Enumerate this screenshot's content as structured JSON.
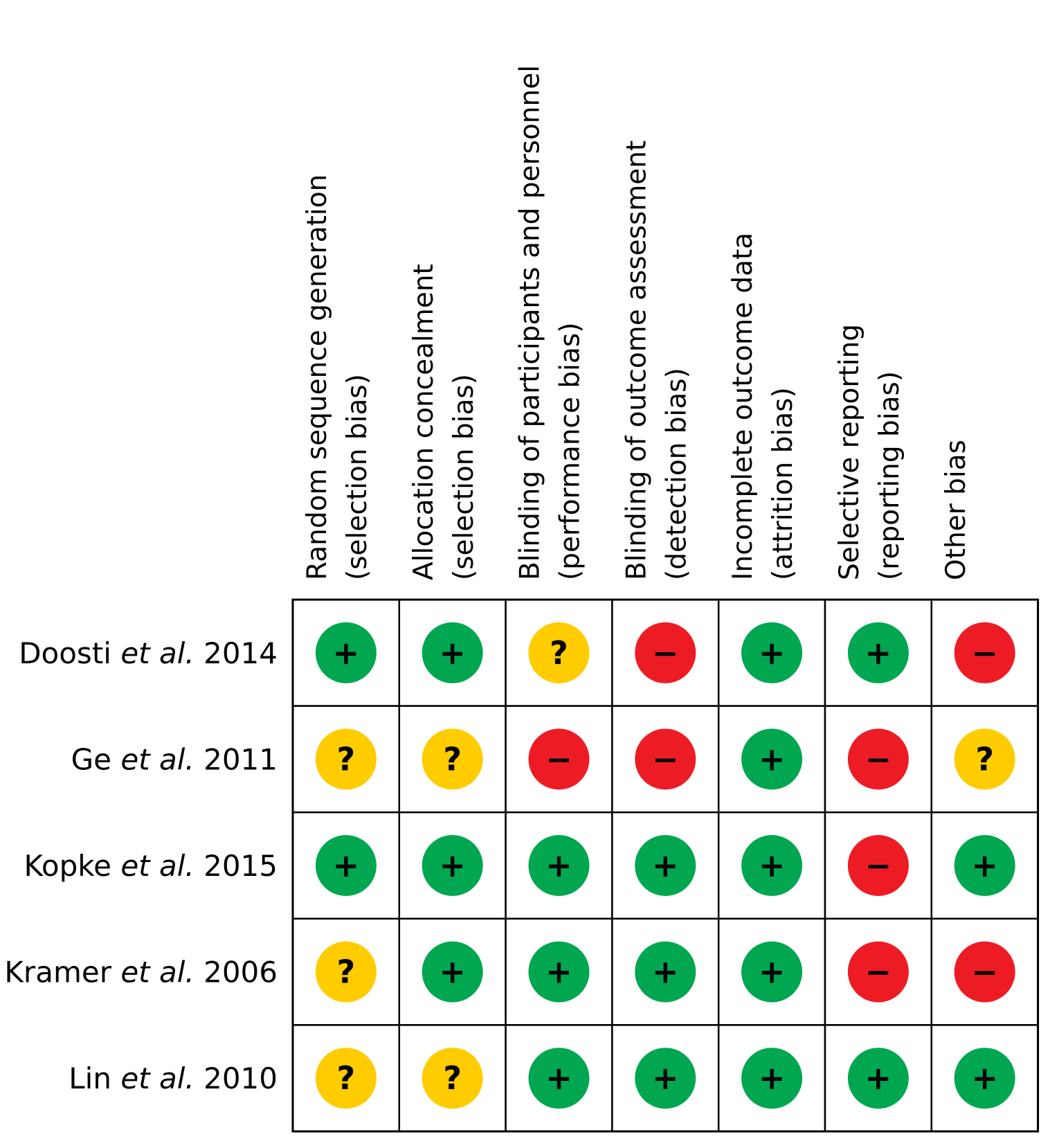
{
  "chart_data": {
    "type": "table",
    "domains": [
      {
        "line1": "Random sequence generation",
        "line2": "(selection bias)"
      },
      {
        "line1": "Allocation concealment",
        "line2": "(selection bias)"
      },
      {
        "line1": "Blinding of participants and personnel",
        "line2": "(performance bias)"
      },
      {
        "line1": "Blinding of outcome assessment",
        "line2": "(detection bias)"
      },
      {
        "line1": "Incomplete outcome data",
        "line2": "(attrition bias)"
      },
      {
        "line1": "Selective reporting",
        "line2": "(reporting bias)"
      },
      {
        "line1": "Other bias",
        "line2": ""
      }
    ],
    "studies": [
      {
        "author": "Doosti",
        "etal": "et al.",
        "year": "2014",
        "judgements": [
          "low",
          "low",
          "unclear",
          "high",
          "low",
          "low",
          "high"
        ]
      },
      {
        "author": "Ge",
        "etal": "et al.",
        "year": "2011",
        "judgements": [
          "unclear",
          "unclear",
          "high",
          "high",
          "low",
          "high",
          "unclear"
        ]
      },
      {
        "author": "Kopke",
        "etal": "et al.",
        "year": "2015",
        "judgements": [
          "low",
          "low",
          "low",
          "low",
          "low",
          "high",
          "low"
        ]
      },
      {
        "author": "Kramer",
        "etal": "et al.",
        "year": "2006",
        "judgements": [
          "unclear",
          "low",
          "low",
          "low",
          "low",
          "high",
          "high"
        ]
      },
      {
        "author": "Lin",
        "etal": "et al.",
        "year": "2010",
        "judgements": [
          "unclear",
          "unclear",
          "low",
          "low",
          "low",
          "low",
          "low"
        ]
      }
    ],
    "judgement_key": {
      "low": {
        "symbol": "+",
        "color": "#00a650"
      },
      "unclear": {
        "symbol": "?",
        "color": "#ffcc00"
      },
      "high": {
        "symbol": "−",
        "color": "#ed1c24"
      }
    }
  }
}
